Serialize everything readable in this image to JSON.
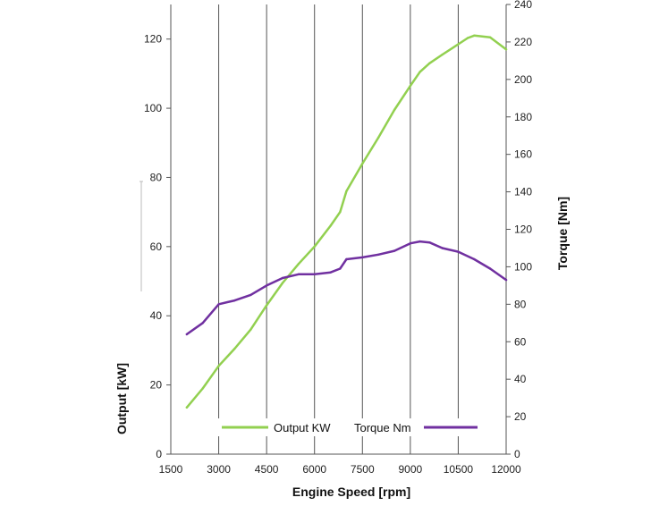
{
  "chart_data": {
    "type": "line",
    "xlabel": "Engine Speed [rpm]",
    "ylabel_left": "Output [kW]",
    "ylabel_right": "Torque [Nm]",
    "xlim": [
      1500,
      12000
    ],
    "ylim_left": [
      0,
      130
    ],
    "ylim_right": [
      0,
      240
    ],
    "xticks": [
      "1500",
      "3000",
      "4500",
      "6000",
      "7500",
      "9000",
      "10500",
      "12000"
    ],
    "yticks_left": [
      "0",
      "20",
      "40",
      "60",
      "80",
      "100",
      "120"
    ],
    "yticks_right": [
      "0",
      "20",
      "40",
      "60",
      "80",
      "100",
      "120",
      "140",
      "160",
      "180",
      "200",
      "220",
      "240"
    ],
    "grid": "vertical",
    "legend": "bottom-inside",
    "series": [
      {
        "name": "Output KW",
        "axis": "left",
        "color": "#92d050",
        "x": [
          2000,
          2500,
          3000,
          3500,
          4000,
          4500,
          5000,
          5500,
          6000,
          6500,
          6800,
          7000,
          7500,
          8000,
          8500,
          9000,
          9300,
          9600,
          10000,
          10500,
          10800,
          11000,
          11500,
          12000
        ],
        "y": [
          13.5,
          19,
          25.5,
          30.5,
          36,
          43,
          49.5,
          55,
          60,
          66,
          70,
          76,
          84,
          91.5,
          99.5,
          106.5,
          110.5,
          113,
          115.5,
          118.5,
          120.3,
          121,
          120.5,
          117
        ]
      },
      {
        "name": "Torque Nm",
        "axis": "right",
        "color": "#7030a0",
        "x": [
          2000,
          2500,
          3000,
          3500,
          4000,
          4500,
          5000,
          5500,
          6000,
          6500,
          6800,
          7000,
          7500,
          8000,
          8500,
          9000,
          9300,
          9600,
          10000,
          10500,
          11000,
          11500,
          12000
        ],
        "y": [
          64,
          70,
          80,
          82,
          85,
          90,
          94,
          96,
          96,
          97,
          99,
          104,
          105,
          106.5,
          108.5,
          112.5,
          113.5,
          113,
          110,
          108,
          104,
          99,
          93
        ]
      }
    ]
  }
}
